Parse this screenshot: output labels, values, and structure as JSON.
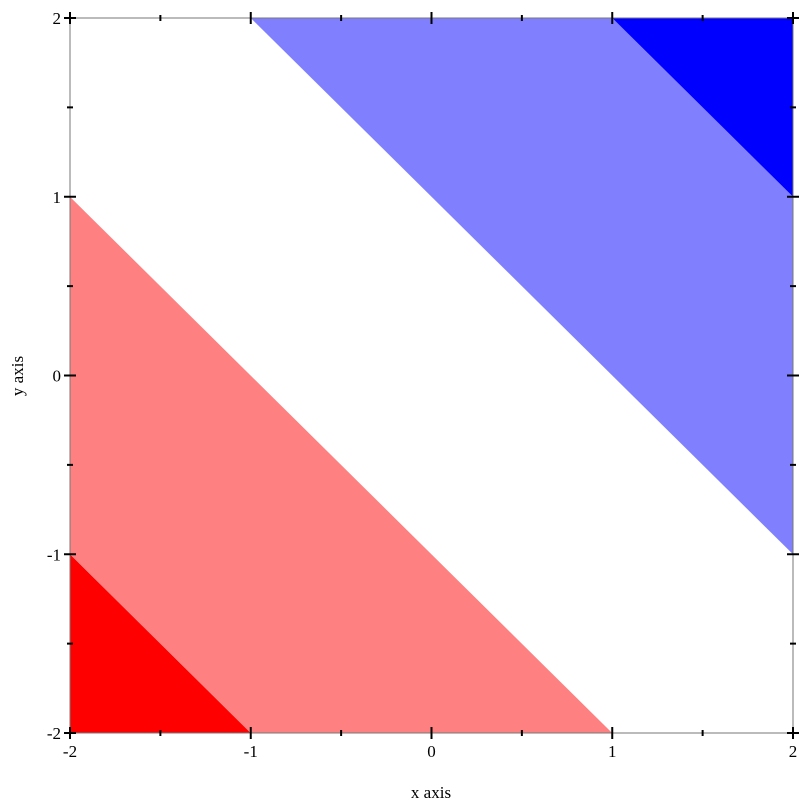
{
  "chart_data": {
    "type": "contour-filled",
    "function": "x + y",
    "xlabel": "x axis",
    "ylabel": "y axis",
    "xlim": [
      -2,
      2
    ],
    "ylim": [
      -2,
      2
    ],
    "xticks": [
      -2,
      -1,
      0,
      1,
      2
    ],
    "yticks": [
      -2,
      -1,
      0,
      1,
      2
    ],
    "xtick_labels": [
      "-2",
      "-1",
      "0",
      "1",
      "2"
    ],
    "ytick_labels": [
      "-2",
      "-1",
      "0",
      "1",
      "2"
    ],
    "minor_tick_step": 0.5,
    "grid": false,
    "bands": [
      {
        "min": -4,
        "max": -3,
        "color": "#ff0000"
      },
      {
        "min": -3,
        "max": -1,
        "color": "#ff8080"
      },
      {
        "min": -1,
        "max": 1,
        "color": "#ffffff"
      },
      {
        "min": 1,
        "max": 3,
        "color": "#8080ff"
      },
      {
        "min": 3,
        "max": 4,
        "color": "#0000ff"
      }
    ]
  }
}
